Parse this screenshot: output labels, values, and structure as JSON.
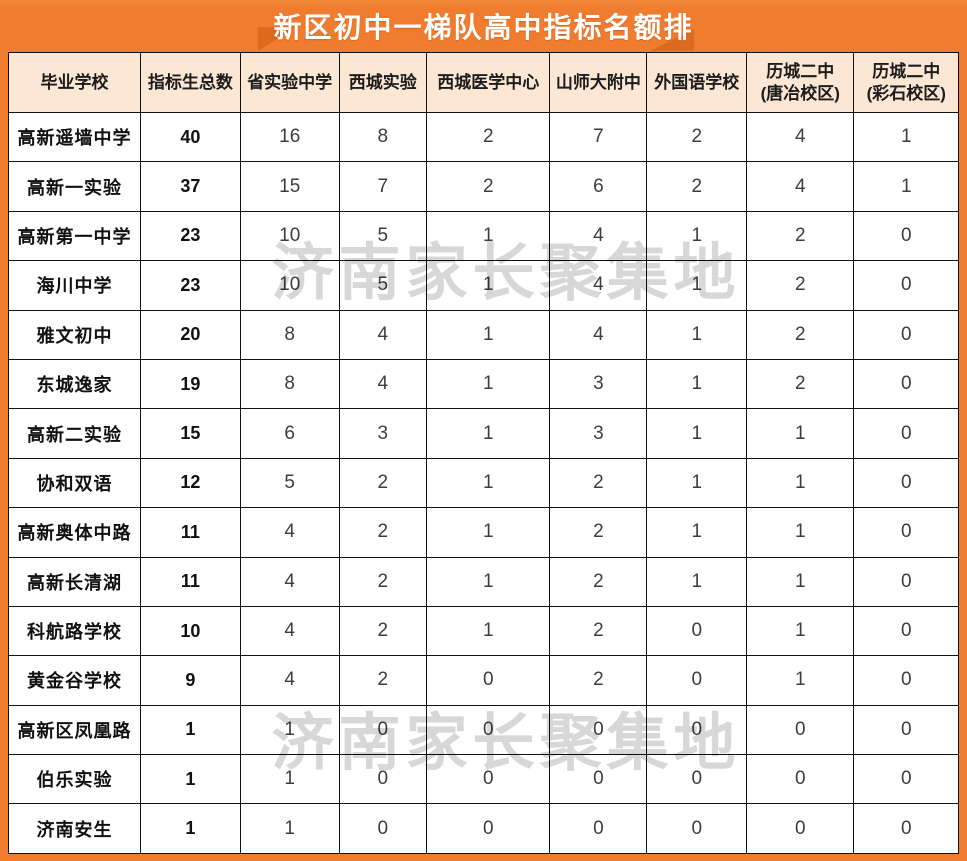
{
  "title": "新区初中一梯队高中指标名额排",
  "watermark": "济南家长聚集地",
  "colors": {
    "accent_orange": "#EF7C2F",
    "ribbon_fold_dark_orange": "#DD6A1E",
    "header_bg_peach": "#FBE7D4",
    "grid_line": "#101010",
    "watermark_gray": "#9e9e9e",
    "title_text": "#ffffff"
  },
  "chart_data": {
    "type": "table",
    "title": "新区初中一梯队高中指标名额排",
    "columns": [
      "毕业学校",
      "指标生总数",
      "省实验中学",
      "西城实验",
      "西城医学中心",
      "山师大附中",
      "外国语学校",
      "历城二中\n(唐冶校区)",
      "历城二中\n(彩石校区)"
    ],
    "rows": [
      {
        "school": "高新遥墙中学",
        "values": [
          40,
          16,
          8,
          2,
          7,
          2,
          4,
          1
        ]
      },
      {
        "school": "高新一实验",
        "values": [
          37,
          15,
          7,
          2,
          6,
          2,
          4,
          1
        ]
      },
      {
        "school": "高新第一中学",
        "values": [
          23,
          10,
          5,
          1,
          4,
          1,
          2,
          0
        ]
      },
      {
        "school": "海川中学",
        "values": [
          23,
          10,
          5,
          1,
          4,
          1,
          2,
          0
        ]
      },
      {
        "school": "雅文初中",
        "values": [
          20,
          8,
          4,
          1,
          4,
          1,
          2,
          0
        ]
      },
      {
        "school": "东城逸家",
        "values": [
          19,
          8,
          4,
          1,
          3,
          1,
          2,
          0
        ]
      },
      {
        "school": "高新二实验",
        "values": [
          15,
          6,
          3,
          1,
          3,
          1,
          1,
          0
        ]
      },
      {
        "school": "协和双语",
        "values": [
          12,
          5,
          2,
          1,
          2,
          1,
          1,
          0
        ]
      },
      {
        "school": "高新奥体中路",
        "values": [
          11,
          4,
          2,
          1,
          2,
          1,
          1,
          0
        ]
      },
      {
        "school": "高新长清湖",
        "values": [
          11,
          4,
          2,
          1,
          2,
          1,
          1,
          0
        ]
      },
      {
        "school": "科航路学校",
        "values": [
          10,
          4,
          2,
          1,
          2,
          0,
          1,
          0
        ]
      },
      {
        "school": "黄金谷学校",
        "values": [
          9,
          4,
          2,
          0,
          2,
          0,
          1,
          0
        ]
      },
      {
        "school": "高新区凤凰路",
        "values": [
          1,
          1,
          0,
          0,
          0,
          0,
          0,
          0
        ]
      },
      {
        "school": "伯乐实验",
        "values": [
          1,
          1,
          0,
          0,
          0,
          0,
          0,
          0
        ]
      },
      {
        "school": "济南安生",
        "values": [
          1,
          1,
          0,
          0,
          0,
          0,
          0,
          0
        ]
      }
    ]
  }
}
